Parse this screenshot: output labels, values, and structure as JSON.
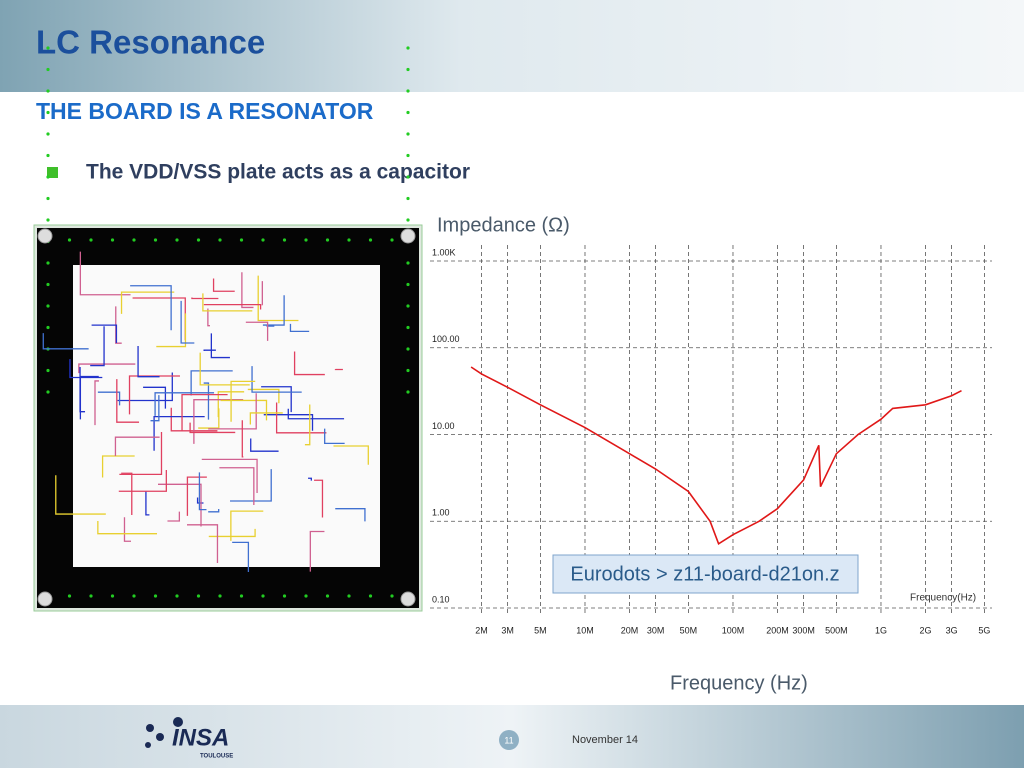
{
  "header": {
    "title": "LC Resonance"
  },
  "subtitle": "THE BOARD IS A RESONATOR",
  "bullet": "The VDD/VSS plate acts as a capacitor",
  "chart_data": {
    "type": "line",
    "y_label": "Impedance (Ω)",
    "x_label": "Frequency (Hz)",
    "inner_x_label": "Frequency(Hz)",
    "log_x": true,
    "log_y": true,
    "grid": true,
    "color": "#e01818",
    "x": [
      1700000,
      2000000,
      3000000,
      5000000,
      10000000,
      20000000,
      30000000,
      50000000,
      70000000,
      80000000,
      100000000,
      150000000,
      200000000,
      300000000,
      380000000,
      390000000,
      500000000,
      700000000,
      1000000000,
      1200000000,
      2000000000,
      3000000000,
      3500000000
    ],
    "values": [
      60,
      50,
      35,
      22,
      12,
      6,
      4,
      2.2,
      1.0,
      0.55,
      0.7,
      1.0,
      1.4,
      3,
      7.5,
      2.5,
      6,
      10,
      15,
      20,
      22,
      28,
      32
    ],
    "xlim": [
      1000000,
      5600000000
    ],
    "ylim": [
      0.1,
      1000
    ],
    "xticks": [
      {
        "value": 2000000,
        "label": "2M"
      },
      {
        "value": 3000000,
        "label": "3M"
      },
      {
        "value": 5000000,
        "label": "5M"
      },
      {
        "value": 10000000,
        "label": "10M"
      },
      {
        "value": 20000000,
        "label": "20M"
      },
      {
        "value": 30000000,
        "label": "30M"
      },
      {
        "value": 50000000,
        "label": "50M"
      },
      {
        "value": 100000000,
        "label": "100M"
      },
      {
        "value": 200000000,
        "label": "200M"
      },
      {
        "value": 300000000,
        "label": "300M"
      },
      {
        "value": 500000000,
        "label": "500M"
      },
      {
        "value": 1000000000,
        "label": "1G"
      },
      {
        "value": 2000000000,
        "label": "2G"
      },
      {
        "value": 3000000000,
        "label": "3G"
      },
      {
        "value": 5000000000,
        "label": "5G"
      }
    ],
    "yticks": [
      {
        "value": 0.1,
        "label": "0.10"
      },
      {
        "value": 1,
        "label": "1.00"
      },
      {
        "value": 10,
        "label": "10.00"
      },
      {
        "value": 100,
        "label": "100.00"
      },
      {
        "value": 1000,
        "label": "1.00K"
      }
    ]
  },
  "callout": "Eurodots > z11-board-d21on.z",
  "footer": {
    "logo": "INSA",
    "logo_sub": "TOULOUSE",
    "page": "11",
    "date": "November 14"
  }
}
